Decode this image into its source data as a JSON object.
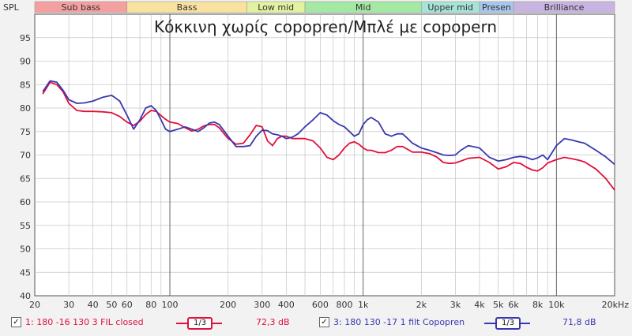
{
  "chart_data": {
    "type": "line",
    "title": "Κόκκινη χωρίς copopren/Μπλέ με copopern",
    "ylabel": "SPL",
    "xlabel_unit": "Hz",
    "xscale": "log",
    "xlim": [
      20,
      20000
    ],
    "ylim": [
      40,
      100
    ],
    "yticks": [
      "95",
      "90",
      "85",
      "80",
      "75",
      "70",
      "65",
      "60",
      "55",
      "50",
      "45",
      "40"
    ],
    "xticks": [
      {
        "value": 20,
        "label": "20"
      },
      {
        "value": 30,
        "label": "30"
      },
      {
        "value": 40,
        "label": "40"
      },
      {
        "value": 50,
        "label": "50"
      },
      {
        "value": 60,
        "label": "60"
      },
      {
        "value": 80,
        "label": "80"
      },
      {
        "value": 100,
        "label": "100"
      },
      {
        "value": 200,
        "label": "200"
      },
      {
        "value": 300,
        "label": "300"
      },
      {
        "value": 400,
        "label": "400"
      },
      {
        "value": 600,
        "label": "600"
      },
      {
        "value": 800,
        "label": "800"
      },
      {
        "value": 1000,
        "label": "1k"
      },
      {
        "value": 2000,
        "label": "2k"
      },
      {
        "value": 3000,
        "label": "3k"
      },
      {
        "value": 4000,
        "label": "4k"
      },
      {
        "value": 5000,
        "label": "5k"
      },
      {
        "value": 6000,
        "label": "6k"
      },
      {
        "value": 8000,
        "label": "8k"
      },
      {
        "value": 10000,
        "label": "10k"
      },
      {
        "value": 20000,
        "label": "20kHz"
      }
    ],
    "bands": [
      {
        "label": "Sub bass",
        "from": 20,
        "to": 60,
        "color": "#f4a0a0"
      },
      {
        "label": "Bass",
        "from": 60,
        "to": 250,
        "color": "#f9e1a0"
      },
      {
        "label": "Low mid",
        "from": 250,
        "to": 500,
        "color": "#e2f2a0"
      },
      {
        "label": "Mid",
        "from": 500,
        "to": 2000,
        "color": "#a4e8a4"
      },
      {
        "label": "Upper mid",
        "from": 2000,
        "to": 4000,
        "color": "#a6e4d8"
      },
      {
        "label": "Presen",
        "from": 4000,
        "to": 6000,
        "color": "#a6c8ee"
      },
      {
        "label": "Brilliance",
        "from": 6000,
        "to": 20000,
        "color": "#c8b4e0"
      }
    ],
    "series": [
      {
        "name": "1: 180 -16 130 3 FIL closed",
        "color": "#e0103c",
        "x": [
          22,
          24,
          26,
          28,
          30,
          33,
          36,
          40,
          45,
          50,
          55,
          60,
          65,
          70,
          75,
          80,
          85,
          90,
          95,
          100,
          110,
          120,
          130,
          140,
          150,
          160,
          170,
          180,
          200,
          220,
          240,
          260,
          280,
          300,
          320,
          340,
          360,
          380,
          400,
          430,
          460,
          500,
          550,
          600,
          650,
          700,
          750,
          800,
          850,
          900,
          950,
          1000,
          1050,
          1100,
          1200,
          1300,
          1400,
          1500,
          1600,
          1700,
          1800,
          2000,
          2200,
          2400,
          2600,
          2800,
          3000,
          3200,
          3500,
          4000,
          4500,
          5000,
          5500,
          6000,
          6500,
          7000,
          7500,
          8000,
          8500,
          9000,
          10000,
          11000,
          12000,
          13000,
          14000,
          16000,
          18000,
          20000
        ],
        "y": [
          83,
          85.5,
          85,
          83.5,
          81,
          79.5,
          79.3,
          79.3,
          79.2,
          79,
          78.2,
          77,
          76.3,
          77.2,
          78.6,
          79.5,
          79.3,
          78.4,
          77.6,
          77,
          76.7,
          75.8,
          75.1,
          75.5,
          76.2,
          76.5,
          76.5,
          75.8,
          73.5,
          72.3,
          72.5,
          74.3,
          76.3,
          76,
          73,
          72,
          73.5,
          74,
          74,
          73.5,
          73.5,
          73.5,
          73,
          71.5,
          69.5,
          69,
          70,
          71.5,
          72.5,
          72.8,
          72.3,
          71.5,
          71,
          71,
          70.5,
          70.5,
          71,
          71.8,
          71.8,
          71.2,
          70.6,
          70.6,
          70.3,
          69.6,
          68.4,
          68.2,
          68.3,
          68.7,
          69.3,
          69.5,
          68.4,
          67,
          67.5,
          68.4,
          68.2,
          67.4,
          66.8,
          66.6,
          67.3,
          68.3,
          69,
          69.5,
          69.2,
          68.9,
          68.5,
          67,
          65,
          62.5
        ]
      },
      {
        "name": "3: 180 130 -17 1 filt Copopren",
        "color": "#3838b0",
        "x": [
          22,
          24,
          26,
          28,
          30,
          33,
          36,
          40,
          45,
          50,
          55,
          60,
          65,
          70,
          75,
          80,
          85,
          90,
          95,
          100,
          110,
          120,
          130,
          140,
          150,
          160,
          170,
          180,
          200,
          220,
          240,
          260,
          280,
          300,
          320,
          340,
          360,
          380,
          400,
          430,
          460,
          500,
          550,
          600,
          650,
          700,
          750,
          800,
          850,
          900,
          950,
          1000,
          1050,
          1100,
          1200,
          1300,
          1400,
          1500,
          1600,
          1700,
          1800,
          2000,
          2200,
          2400,
          2600,
          2800,
          3000,
          3200,
          3500,
          4000,
          4500,
          5000,
          5500,
          6000,
          6500,
          7000,
          7500,
          8000,
          8500,
          9000,
          10000,
          11000,
          12000,
          13000,
          14000,
          16000,
          18000,
          20000
        ],
        "y": [
          83.5,
          85.8,
          85.5,
          83.8,
          81.8,
          81,
          81.1,
          81.5,
          82.3,
          82.7,
          81.5,
          78.5,
          75.5,
          77.5,
          80,
          80.5,
          79.5,
          77.5,
          75.5,
          75,
          75.5,
          76,
          75.5,
          75,
          75.8,
          76.8,
          77,
          76.5,
          74,
          71.8,
          71.8,
          72,
          74,
          75.3,
          75.2,
          74.5,
          74.3,
          74,
          73.5,
          73.8,
          74.5,
          76,
          77.5,
          79,
          78.5,
          77.3,
          76.5,
          76,
          75,
          74,
          74.5,
          76.5,
          77.5,
          78,
          77,
          74.5,
          74,
          74.5,
          74.5,
          73.5,
          72.5,
          71.5,
          71,
          70.5,
          70,
          69.9,
          70,
          71,
          72,
          71.5,
          69.5,
          68.7,
          69,
          69.5,
          69.7,
          69.5,
          69,
          69.4,
          70,
          69,
          72,
          73.5,
          73.2,
          72.8,
          72.5,
          71,
          69.6,
          68
        ]
      }
    ]
  },
  "legend": {
    "items": [
      {
        "check": "✓",
        "label": "1: 180 -16 130 3 FIL closed",
        "smoothing": "1/3",
        "level": "72,3 dB",
        "color": "#e0103c"
      },
      {
        "check": "✓",
        "label": "3: 180 130 -17 1 filt Copopren",
        "smoothing": "1/3",
        "level": "71,8 dB",
        "color": "#3838b0"
      }
    ]
  }
}
